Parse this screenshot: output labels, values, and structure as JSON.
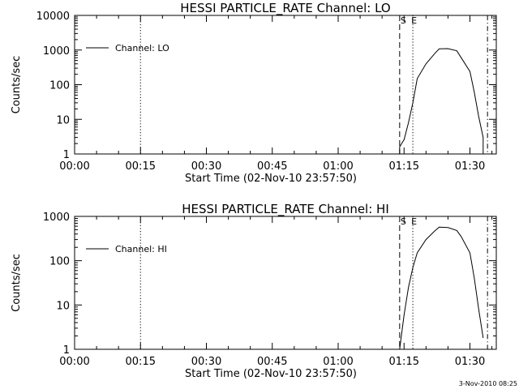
{
  "footer": "3-Nov-2010 08:25",
  "chart_data": [
    {
      "type": "line",
      "title": "HESSI PARTICLE_RATE Channel: LO",
      "xlabel": "Start Time (02-Nov-10 23:57:50)",
      "ylabel": "Counts/sec",
      "yscale": "log",
      "ylim": [
        1,
        10000
      ],
      "xlim": [
        "00:00",
        "01:36"
      ],
      "xtick_labels": [
        "00:00",
        "00:15",
        "00:30",
        "00:45",
        "01:00",
        "01:15",
        "01:30"
      ],
      "ytick_labels": [
        "1",
        "10",
        "100",
        "1000",
        "10000"
      ],
      "legend": {
        "placement": "top-left",
        "entries": [
          "Channel: LO"
        ]
      },
      "marker_labels": {
        "start": "S",
        "end": "E"
      },
      "vlines": [
        {
          "x": "00:15",
          "style": "dotted"
        },
        {
          "x": "01:14",
          "style": "dashed"
        },
        {
          "x": "01:17",
          "style": "dotted"
        },
        {
          "x": "01:34",
          "style": "dashdot"
        }
      ],
      "series": [
        {
          "x": [
            "01:13",
            "01:14",
            "01:14",
            "01:15",
            "01:16",
            "01:17",
            "01:18",
            "01:20",
            "01:22",
            "01:23",
            "01:25",
            "01:27",
            "01:28",
            "01:30",
            "01:31",
            "01:32",
            "01:33",
            "01:33"
          ],
          "y": [
            1,
            1,
            1.6,
            2.6,
            8,
            30,
            150,
            400,
            800,
            1080,
            1100,
            950,
            600,
            240,
            60,
            12,
            3,
            1
          ]
        }
      ]
    },
    {
      "type": "line",
      "title": "HESSI PARTICLE_RATE Channel: HI",
      "xlabel": "Start Time (02-Nov-10 23:57:50)",
      "ylabel": "Counts/sec",
      "yscale": "log",
      "ylim": [
        1,
        1000
      ],
      "xlim": [
        "00:00",
        "01:36"
      ],
      "xtick_labels": [
        "00:00",
        "00:15",
        "00:30",
        "00:45",
        "01:00",
        "01:15",
        "01:30"
      ],
      "ytick_labels": [
        "1",
        "10",
        "100",
        "1000"
      ],
      "legend": {
        "placement": "top-left",
        "entries": [
          "Channel: HI"
        ]
      },
      "marker_labels": {
        "start": "S",
        "end": "E"
      },
      "vlines": [
        {
          "x": "00:15",
          "style": "dotted"
        },
        {
          "x": "01:14",
          "style": "dashed"
        },
        {
          "x": "01:17",
          "style": "dotted"
        },
        {
          "x": "01:34",
          "style": "dashdot"
        }
      ],
      "series": [
        {
          "x": [
            "01:14",
            "01:15",
            "01:16",
            "01:17",
            "01:18",
            "01:20",
            "01:22",
            "01:23",
            "01:25",
            "01:27",
            "01:28",
            "01:30",
            "01:31",
            "01:32",
            "01:33"
          ],
          "y": [
            1,
            6,
            25,
            70,
            150,
            300,
            470,
            570,
            560,
            480,
            350,
            150,
            40,
            8,
            1.8
          ]
        }
      ]
    }
  ]
}
